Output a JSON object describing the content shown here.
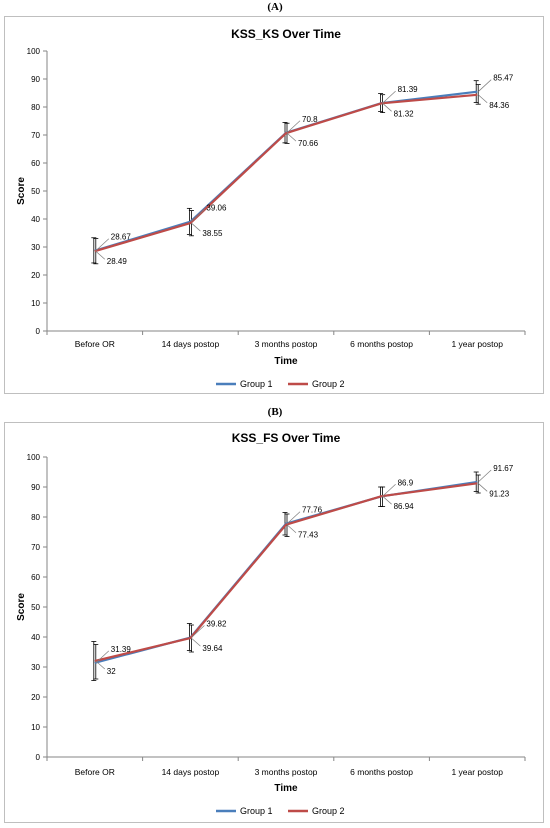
{
  "panel_labels": [
    "(A)",
    "(B)"
  ],
  "chart_data": [
    {
      "type": "line",
      "title": "KSS_KS Over Time",
      "xlabel": "Time",
      "ylabel": "Score",
      "ylim": [
        0,
        100
      ],
      "ytick_step": 10,
      "grid": false,
      "legend": "bottom",
      "categories": [
        "Before OR",
        "14 days postop",
        "3 months postop",
        "6 months postop",
        "1 year postop"
      ],
      "series": [
        {
          "name": "Group 1",
          "color": "#4a7ebb",
          "values": [
            28.67,
            39.06,
            70.8,
            81.39,
            85.47
          ],
          "err_low": [
            24.3,
            34.5,
            67.2,
            78.4,
            81.6
          ],
          "err_high": [
            33.3,
            43.8,
            74.5,
            84.8,
            89.4
          ]
        },
        {
          "name": "Group 2",
          "color": "#be4b48",
          "values": [
            28.49,
            38.55,
            70.66,
            81.32,
            84.36
          ],
          "err_low": [
            24.0,
            34.0,
            67.0,
            78.0,
            81.0
          ],
          "err_high": [
            33.0,
            43.0,
            74.2,
            84.4,
            88.0
          ]
        }
      ],
      "data_labels": [
        [
          "28.67",
          "39.06",
          "70.8",
          "81.39",
          "85.47"
        ],
        [
          "28.49",
          "38.55",
          "70.66",
          "81.32",
          "84.36"
        ]
      ]
    },
    {
      "type": "line",
      "title": "KSS_FS Over Time",
      "xlabel": "Time",
      "ylabel": "Score",
      "ylim": [
        0,
        100
      ],
      "ytick_step": 10,
      "grid": false,
      "legend": "bottom",
      "categories": [
        "Before OR",
        "14 days postop",
        "3 months postop",
        "6 months postop",
        "1 year postop"
      ],
      "series": [
        {
          "name": "Group 1",
          "color": "#4a7ebb",
          "values": [
            31.39,
            39.82,
            77.76,
            86.9,
            91.67
          ],
          "err_low": [
            25.5,
            35.5,
            74.0,
            83.5,
            88.5
          ],
          "err_high": [
            38.5,
            44.5,
            81.5,
            90.0,
            95.0
          ]
        },
        {
          "name": "Group 2",
          "color": "#be4b48",
          "values": [
            32,
            39.64,
            77.43,
            86.94,
            91.23
          ],
          "err_low": [
            26.0,
            35.0,
            73.5,
            83.5,
            88.0
          ],
          "err_high": [
            37.5,
            44.0,
            81.0,
            90.0,
            94.0
          ]
        }
      ],
      "data_labels": [
        [
          "31.39",
          "39.82",
          "77.76",
          "86.9",
          "91.67"
        ],
        [
          "32",
          "39.64",
          "77.43",
          "86.94",
          "91.23"
        ]
      ]
    }
  ]
}
